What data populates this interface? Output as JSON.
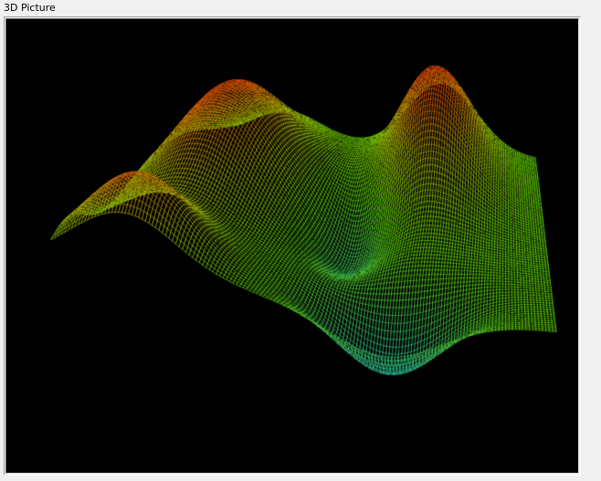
{
  "panel": {
    "title": "3D Picture"
  },
  "colors": {
    "background": "#000000",
    "mesh_low": "#10a0b8",
    "mesh_mid": "#58c800",
    "mesh_high": "#d04000"
  },
  "surface": {
    "type": "mesh",
    "peaks": 2,
    "valleys": 2
  }
}
